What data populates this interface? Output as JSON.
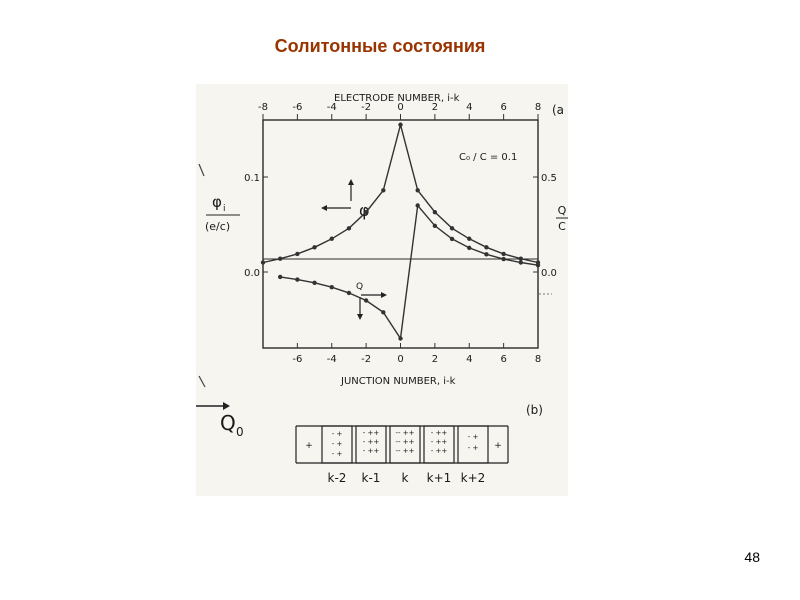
{
  "slide": {
    "title": "Солитонные состояния",
    "page_number": "48"
  },
  "figure": {
    "panel_a": "(a",
    "panel_b": "(b)",
    "top_axis_label": "ELECTRODE NUMBER, i-k",
    "bottom_axis_label": "JUNCTION NUMBER, i-k",
    "left_axis_label_top": "φ",
    "left_axis_label_sub": "i",
    "left_axis_label_bottom": "(e/c)",
    "right_axis_label_top": "Q",
    "right_axis_label_bottom": "C",
    "annotation": "C₀ / C = 0.1",
    "phi_label": "φ",
    "q_label": "Q",
    "q0_label": "Q",
    "q0_sub": "0",
    "cell_labels": [
      "k-2",
      "k-1",
      "k",
      "k+1",
      "k+2"
    ],
    "line_color": "#333333",
    "paper_color": "#f6f5f0"
  },
  "chart_data": {
    "type": "line",
    "title": "",
    "top_axis": {
      "label": "ELECTRODE NUMBER, i-k",
      "ticks": [
        "-8",
        "-6",
        "-4",
        "-2",
        "0",
        "2",
        "4",
        "6",
        "8"
      ],
      "range": [
        -8,
        8
      ]
    },
    "bottom_axis": {
      "label": "JUNCTION NUMBER, i-k",
      "ticks": [
        "-6",
        "-4",
        "-2",
        "0",
        "2",
        "4",
        "6",
        "8"
      ],
      "range": [
        -8,
        8
      ]
    },
    "left_axis": {
      "label": "φi (e/c)",
      "ticks": [
        "0.1",
        "0.0"
      ],
      "range": [
        -0.08,
        0.16
      ]
    },
    "right_axis": {
      "label": "Q/C",
      "ticks": [
        "0.5",
        "0.0"
      ],
      "range": [
        -0.4,
        0.8
      ]
    },
    "grid": false,
    "series": [
      {
        "name": "φ",
        "axis": "left",
        "x": [
          -8,
          -7,
          -6,
          -5,
          -4,
          -3,
          -2,
          -1,
          0,
          1,
          2,
          3,
          4,
          5,
          6,
          7,
          8
        ],
        "y": [
          0.01,
          0.014,
          0.019,
          0.026,
          0.035,
          0.046,
          0.063,
          0.086,
          0.155,
          0.086,
          0.063,
          0.046,
          0.035,
          0.026,
          0.019,
          0.014,
          0.01
        ]
      },
      {
        "name": "Q",
        "axis": "right",
        "x": [
          -7,
          -6,
          -5,
          -4,
          -3,
          -2,
          -1,
          0,
          1,
          2,
          3,
          4,
          5,
          6,
          7,
          8
        ],
        "y": [
          -0.026,
          -0.04,
          -0.057,
          -0.08,
          -0.11,
          -0.15,
          -0.212,
          -0.35,
          0.35,
          0.243,
          0.174,
          0.127,
          0.093,
          0.068,
          0.05,
          0.036
        ]
      }
    ]
  }
}
